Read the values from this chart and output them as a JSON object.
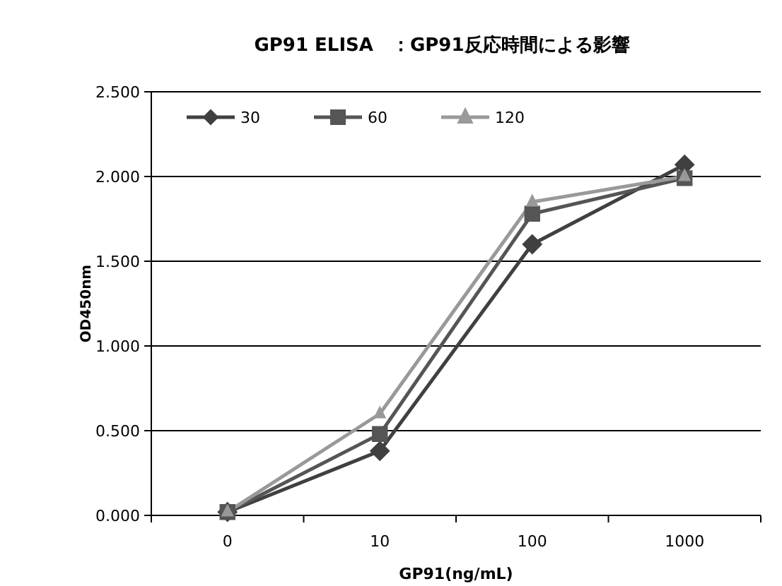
{
  "chart_data": {
    "type": "line",
    "title": "GP91 ELISA　：GP91反応時間による影響",
    "xlabel": "GP91(ng/mL)",
    "ylabel": "OD450nm",
    "categories": [
      "0",
      "10",
      "100",
      "1000"
    ],
    "series": [
      {
        "name": "30",
        "color": "#404040",
        "marker": "diamond",
        "values": [
          0.02,
          0.38,
          1.6,
          2.07
        ]
      },
      {
        "name": "60",
        "color": "#555555",
        "marker": "square",
        "values": [
          0.02,
          0.48,
          1.78,
          1.99
        ]
      },
      {
        "name": "120",
        "color": "#999999",
        "marker": "triangle",
        "values": [
          0.02,
          0.6,
          1.85,
          2.0
        ]
      }
    ],
    "ylim": [
      0,
      2.5
    ],
    "yticks": [
      {
        "value": 0,
        "label": "0.000"
      },
      {
        "value": 0.5,
        "label": "0.500"
      },
      {
        "value": 1,
        "label": "1.000"
      },
      {
        "value": 1.5,
        "label": "1.500"
      },
      {
        "value": 2,
        "label": "2.000"
      },
      {
        "value": 2.5,
        "label": "2.500"
      }
    ],
    "grid": "y",
    "legend": "top left",
    "line_style": "solid"
  }
}
